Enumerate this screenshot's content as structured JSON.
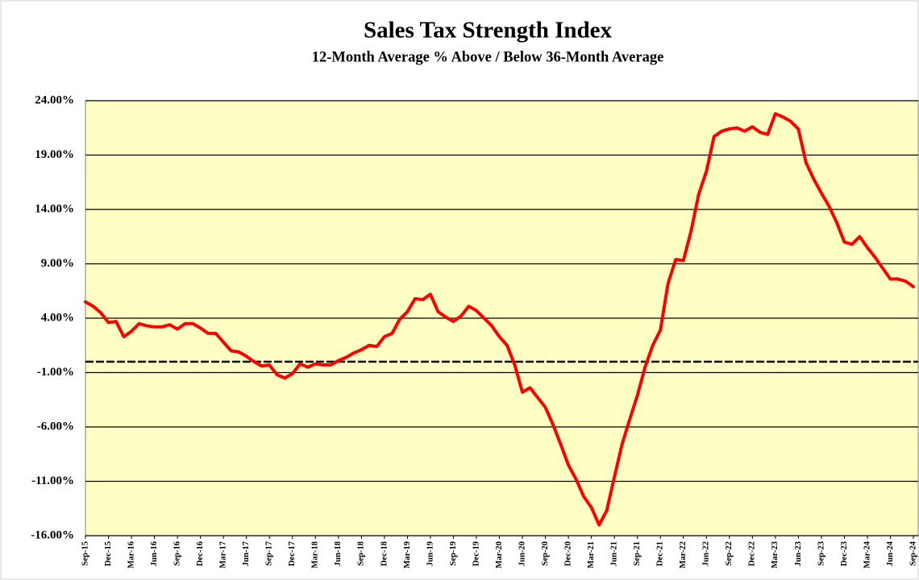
{
  "chart_data": {
    "type": "line",
    "title": "Sales Tax Strength Index",
    "subtitle": "12-Month Average  % Above / Below 36-Month Average",
    "categories": [
      "Sep-15",
      null,
      null,
      "Dec-15",
      null,
      null,
      "Mar-16",
      null,
      null,
      "Jun-16",
      null,
      null,
      "Sep-16",
      null,
      null,
      "Dec-16",
      null,
      null,
      "Mar-17",
      null,
      null,
      "Jun-17",
      null,
      null,
      "Sep-17",
      null,
      null,
      "Dec-17",
      null,
      null,
      "Mar-18",
      null,
      null,
      "Jun-18",
      null,
      null,
      "Sep-18",
      null,
      null,
      "Dec-18",
      null,
      null,
      "Mar-19",
      null,
      null,
      "Jun-19",
      null,
      null,
      "Sep-19",
      null,
      null,
      "Dec-19",
      null,
      null,
      "Mar-20",
      null,
      null,
      "Jun-20",
      null,
      null,
      "Sep-20",
      null,
      null,
      "Dec-20",
      null,
      null,
      "Mar-21",
      null,
      null,
      "Jun-21",
      null,
      null,
      "Sep-21",
      null,
      null,
      "Dec-21",
      null,
      null,
      "Mar-22",
      null,
      null,
      "Jun-22",
      null,
      null,
      "Sep-22",
      null,
      null,
      "Dec-22",
      null,
      null,
      "Mar-23",
      null,
      null,
      "Jun-23",
      null,
      null,
      "Sep-23",
      null,
      null,
      "Dec-23",
      null,
      null,
      "Mar-24",
      null,
      null,
      "Jun-24",
      null,
      null,
      "Sep-24"
    ],
    "values": [
      5.5,
      5.1,
      4.5,
      3.6,
      3.7,
      2.3,
      2.8,
      3.5,
      3.3,
      3.2,
      3.2,
      3.4,
      3.0,
      3.5,
      3.5,
      3.1,
      2.6,
      2.6,
      1.8,
      1.0,
      0.9,
      0.5,
      0.0,
      -0.4,
      -0.3,
      -1.2,
      -1.5,
      -1.1,
      -0.2,
      -0.5,
      -0.2,
      -0.3,
      -0.3,
      0.1,
      0.4,
      0.8,
      1.1,
      1.5,
      1.4,
      2.3,
      2.6,
      3.9,
      4.6,
      5.8,
      5.7,
      6.2,
      4.6,
      4.1,
      3.7,
      4.2,
      5.1,
      4.7,
      4.0,
      3.3,
      2.3,
      1.5,
      -0.3,
      -2.8,
      -2.4,
      -3.3,
      -4.2,
      -5.8,
      -7.6,
      -9.5,
      -10.8,
      -12.4,
      -13.4,
      -15.0,
      -13.7,
      -10.6,
      -7.6,
      -5.3,
      -3.1,
      -0.5,
      1.5,
      2.9,
      7.2,
      9.4,
      9.3,
      12.0,
      15.4,
      17.5,
      20.7,
      21.2,
      21.4,
      21.5,
      21.2,
      21.6,
      21.1,
      20.9,
      22.8,
      22.5,
      22.1,
      21.4,
      18.3,
      16.8,
      15.5,
      14.3,
      12.8,
      11.0,
      10.8,
      11.5,
      10.5,
      9.6,
      8.6,
      7.6,
      7.6,
      7.4,
      6.9
    ],
    "color": "#ff0000",
    "ylim": [
      -16,
      24
    ],
    "yticks": [
      {
        "value": -16,
        "label": "-16.00%"
      },
      {
        "value": -11,
        "label": "-11.00%"
      },
      {
        "value": -6,
        "label": "-6.00%"
      },
      {
        "value": -1,
        "label": "-1.00%"
      },
      {
        "value": 4,
        "label": "4.00%"
      },
      {
        "value": 9,
        "label": "9.00%"
      },
      {
        "value": 14,
        "label": "14.00%"
      },
      {
        "value": 19,
        "label": "19.00%"
      },
      {
        "value": 24,
        "label": "24.00%"
      }
    ],
    "grid": true,
    "reference_line": 0,
    "plot_background": "#ffffc4"
  }
}
